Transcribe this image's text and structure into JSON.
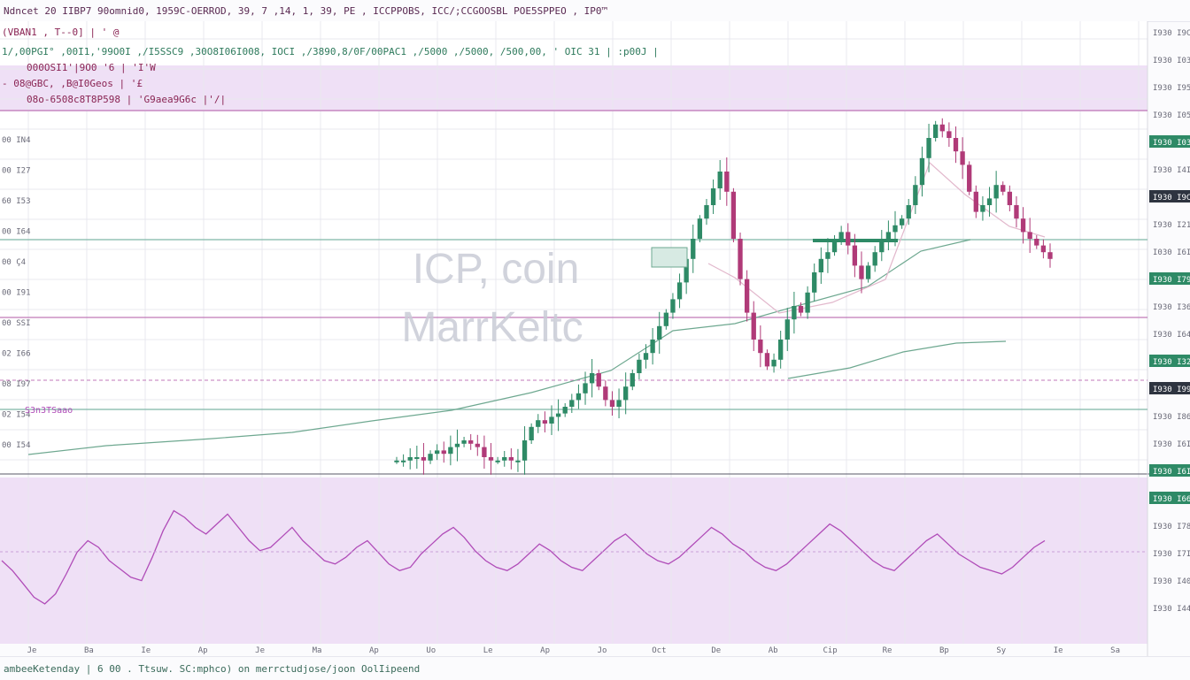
{
  "header": {
    "title": "Ndncet 20 IIBP7 90omnid0, 1959C-OERROD, 39, 7 ,14, 1, 39, PE , ICCPPOBS, ICC/;CCGOOSBL POE5SPPEO , IP0™"
  },
  "legend": {
    "line1": "(VBAN1 , T--0] | ' @",
    "line2": "1/,00PGI° ,00I1,'99O0I ,/I5SSC9 ,30O8I06I008, IOCI ,/3890,8/0F/00PAC1 ,/5000 ,/5000, /500,00, ' OIC 31 | :p00J |",
    "line3": "000OSI1'|9O0 '6 | 'I'W",
    "line4": "- 08@GBC, ,B@I0Geos | '£",
    "line5": "08o-6508c8T8P598 | 'G9aea9G6c |'/|"
  },
  "watermark": {
    "line1": "ICP, coin",
    "line2": "MarrKeltc"
  },
  "level_label": "S3n3TSaao",
  "footer": {
    "status": "ambeeKetenday | 6 00 . Ttsuw. SC:mphco) on merrctudjose/joon OolIipeend"
  },
  "colors": {
    "up": "#2e8a66",
    "down": "#b03a78",
    "rsi": "#b04cb8",
    "bg": "#fbfbfd",
    "band": "#efe0f6",
    "grid": "#e8e8ef",
    "hline": "#7fb8a8",
    "pline": "#c07ab8"
  },
  "chart_data": {
    "type": "candlestick",
    "title": "ICP, coin",
    "price_ticks_left": [
      "00 IN4",
      "00 I27",
      "60 I53",
      "00 I64",
      "00 Ç4",
      "00 I91",
      "00 SSI",
      "02 I66",
      "08 I97",
      "02 I54",
      "00 I54"
    ],
    "price_ticks_right": [
      "I930 I9CI",
      "I930 I03I",
      "I930 I95I",
      "I930 I05I",
      "I930 I03I",
      "I930 I4I",
      "I930 I9CI",
      "I930 I21I",
      "I030 I6I4",
      "I930 I79I",
      "I930 I36I",
      "I930 I64I",
      "I930 I32I",
      "I930 I99I",
      "I930 I86I",
      "I930 I6I6",
      "I930 I6I4",
      "I930 I66I",
      "I930 I78I",
      "I930 I7I3",
      "I930 I40I",
      "I930 I44I"
    ],
    "x_ticks": [
      "Je",
      "Ba",
      "Ie",
      "Ap",
      "Je",
      "Ma",
      "Ap",
      "Uo",
      "Le",
      "Ap",
      "Jo",
      "Oct",
      "De",
      "Ab",
      "Cip",
      "Re",
      "Bp",
      "Sy",
      "Ie",
      "Sa"
    ],
    "price_candles": [
      4,
      4,
      5,
      5,
      4,
      6,
      7,
      6,
      8,
      9,
      10,
      9,
      8,
      5,
      4,
      4,
      5,
      4,
      4,
      10,
      14,
      16,
      15,
      17,
      18,
      20,
      22,
      24,
      27,
      30,
      26,
      22,
      20,
      22,
      26,
      30,
      34,
      36,
      40,
      44,
      48,
      52,
      57,
      64,
      70,
      76,
      80,
      85,
      90,
      84,
      70,
      58,
      48,
      40,
      36,
      32,
      34,
      40,
      46,
      50,
      48,
      54,
      60,
      64,
      66,
      70,
      72,
      68,
      62,
      58,
      62,
      66,
      70,
      72,
      74,
      76,
      80,
      86,
      94,
      100,
      104,
      102,
      100,
      96,
      92,
      84,
      78,
      80,
      82,
      86,
      84,
      80,
      76,
      72,
      70,
      68,
      66,
      64
    ],
    "rsi_series": [
      50,
      44,
      36,
      28,
      24,
      30,
      42,
      55,
      62,
      58,
      50,
      45,
      40,
      38,
      52,
      68,
      80,
      76,
      70,
      66,
      72,
      78,
      70,
      62,
      56,
      58,
      64,
      70,
      62,
      56,
      50,
      48,
      52,
      58,
      62,
      55,
      48,
      44,
      46,
      54,
      60,
      66,
      70,
      64,
      56,
      50,
      46,
      44,
      48,
      54,
      60,
      56,
      50,
      46,
      44,
      50,
      56,
      62,
      66,
      60,
      54,
      50,
      48,
      52,
      58,
      64,
      70,
      66,
      60,
      56,
      50,
      46,
      44,
      48,
      54,
      60,
      66,
      72,
      68,
      62,
      56,
      50,
      46,
      44,
      50,
      56,
      62,
      66,
      60,
      54,
      50,
      46,
      44,
      42,
      46,
      52,
      58,
      62
    ],
    "rsi_range": [
      0,
      100
    ]
  }
}
